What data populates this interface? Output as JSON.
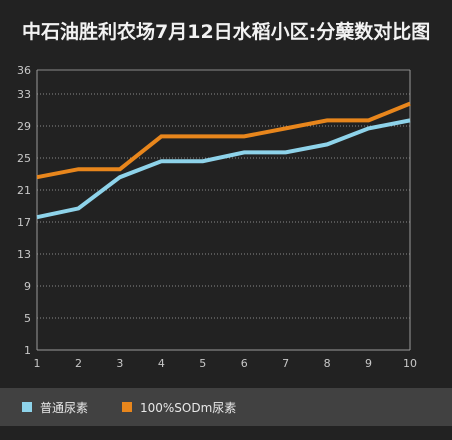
{
  "title": "中石油胜利农场7月12日水稻小区:分蘖数对比图",
  "colors": {
    "background": "#222222",
    "grid": "#8a8a8a",
    "axis": "#9a9a9a",
    "tick_text": "#c8c8c8",
    "legend_bg": "#414141",
    "series_1": "#8ed3ea",
    "series_2": "#e8861c"
  },
  "chart_data": {
    "type": "line",
    "title": "中石油胜利农场7月12日水稻小区:分蘖数对比图",
    "xlabel": "",
    "ylabel": "",
    "x": [
      1,
      2,
      3,
      4,
      5,
      6,
      7,
      8,
      9,
      10
    ],
    "ylim": [
      1,
      36
    ],
    "yticks": [
      1,
      5,
      9,
      13,
      17,
      21,
      25,
      29,
      33,
      36
    ],
    "grid": true,
    "legend_position": "bottom",
    "series": [
      {
        "name": "普通尿素",
        "color": "#8ed3ea",
        "values": [
          17.6,
          18.7,
          22.6,
          24.6,
          24.6,
          25.7,
          25.7,
          26.7,
          28.7,
          29.7
        ]
      },
      {
        "name": "100%SODm尿素",
        "color": "#e8861c",
        "values": [
          22.6,
          23.6,
          23.6,
          27.7,
          27.7,
          27.7,
          28.7,
          29.7,
          29.7,
          31.8
        ]
      }
    ]
  },
  "legend": {
    "item_1_label": "普通尿素",
    "item_2_label": "100%SODm尿素"
  }
}
